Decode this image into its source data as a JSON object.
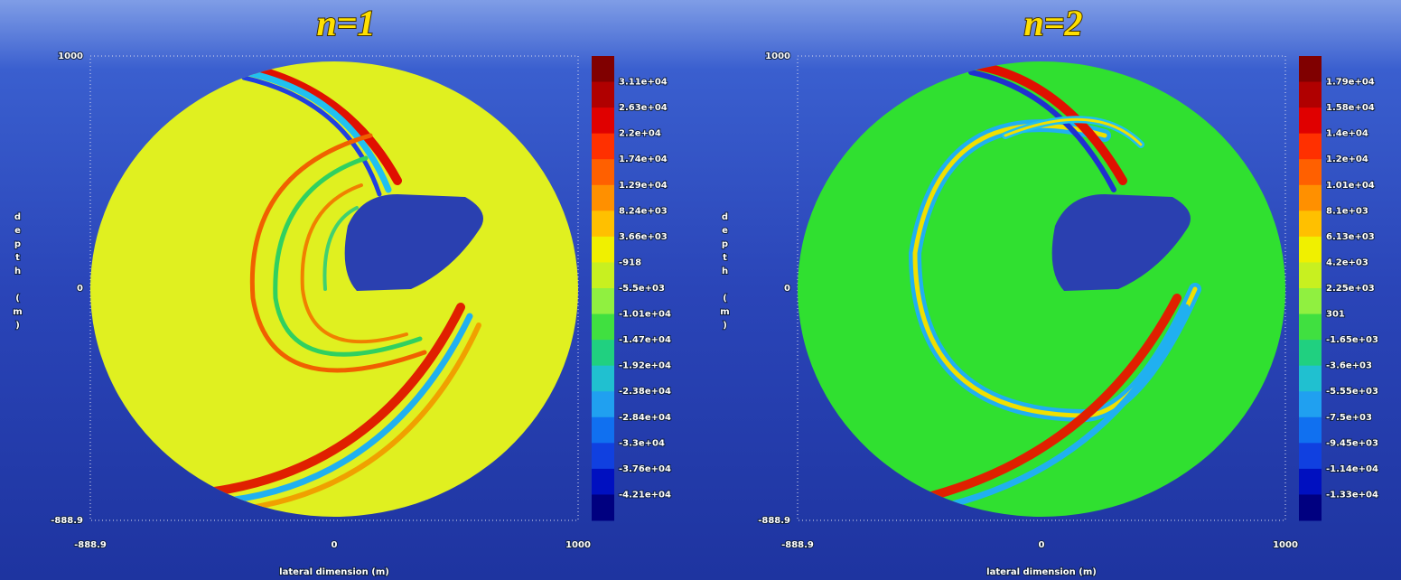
{
  "panels": [
    {
      "title": "n=1",
      "y_label": "depth (m)",
      "x_label": "lateral dimension (m)",
      "y_ticks": [
        "1000",
        "0",
        "-888.9"
      ],
      "x_ticks": [
        "-888.9",
        "0",
        "1000"
      ],
      "colorbar_labels": [
        "3.11e+04",
        "2.63e+04",
        "2.2e+04",
        "1.74e+04",
        "1.29e+04",
        "8.24e+03",
        "3.66e+03",
        "-918",
        "-5.5e+03",
        "-1.01e+04",
        "-1.47e+04",
        "-1.92e+04",
        "-2.38e+04",
        "-2.84e+04",
        "-3.3e+04",
        "-3.76e+04",
        "-4.21e+04"
      ]
    },
    {
      "title": "n=2",
      "y_label": "depth (m)",
      "x_label": "lateral dimension (m)",
      "y_ticks": [
        "1000",
        "0",
        "-888.9"
      ],
      "x_ticks": [
        "-888.9",
        "0",
        "1000"
      ],
      "colorbar_labels": [
        "1.79e+04",
        "1.58e+04",
        "1.4e+04",
        "1.2e+04",
        "1.01e+04",
        "8.1e+03",
        "6.13e+03",
        "4.2e+03",
        "2.25e+03",
        "301",
        "-1.65e+03",
        "-3.6e+03",
        "-5.55e+03",
        "-7.5e+03",
        "-9.45e+03",
        "-1.14e+04",
        "-1.33e+04"
      ]
    }
  ]
}
